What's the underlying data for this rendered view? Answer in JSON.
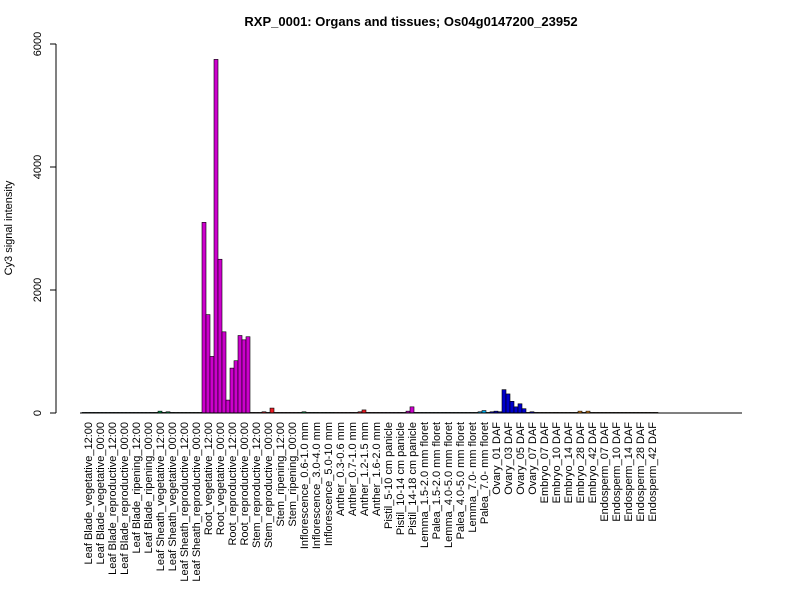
{
  "chart_data": {
    "type": "bar",
    "title": "RXP_0001: Organs and tissues; Os04g0147200_23952",
    "xlabel": "",
    "ylabel": "Cy3 signal intensity",
    "ylim": [
      0,
      6000
    ],
    "yticks": [
      0,
      2000,
      4000,
      6000
    ],
    "groups": [
      {
        "label": "Leaf Blade_vegetative_12:00",
        "color": "#00AEEF",
        "values": [
          0,
          0,
          0
        ]
      },
      {
        "label": "Leaf Blade_vegetative_00:00",
        "color": "#00AEEF",
        "values": [
          0,
          0,
          0
        ]
      },
      {
        "label": "Leaf Blade_reproductive_12:00",
        "color": "#00AEEF",
        "values": [
          0,
          0,
          0
        ]
      },
      {
        "label": "Leaf Blade_reproductive_00:00",
        "color": "#00AEEF",
        "values": [
          0,
          0,
          0
        ]
      },
      {
        "label": "Leaf Blade_ripening_12:00",
        "color": "#00AEEF",
        "values": [
          0,
          0,
          0
        ]
      },
      {
        "label": "Leaf Blade_ripening_00:00",
        "color": "#00AEEF",
        "values": [
          0,
          0,
          0
        ]
      },
      {
        "label": "Leaf Sheath_vegetative_12:00",
        "color": "#00A651",
        "values": [
          10,
          30,
          10
        ]
      },
      {
        "label": "Leaf Sheath_vegetative_00:00",
        "color": "#00A651",
        "values": [
          20,
          10,
          0
        ]
      },
      {
        "label": "Leaf Sheath_reproductive_12:00",
        "color": "#00A651",
        "values": [
          0,
          0,
          0
        ]
      },
      {
        "label": "Leaf Sheath_reproductive_00:00",
        "color": "#00A651",
        "values": [
          0,
          0,
          0
        ]
      },
      {
        "label": "Root_vegetative_12:00",
        "color": "#CC00CC",
        "values": [
          3100,
          1600,
          920
        ]
      },
      {
        "label": "Root_vegetative_00:00",
        "color": "#CC00CC",
        "values": [
          5750,
          2500,
          1320
        ]
      },
      {
        "label": "Root_reproductive_12:00",
        "color": "#CC00CC",
        "values": [
          210,
          730,
          850
        ]
      },
      {
        "label": "Root_reproductive_00:00",
        "color": "#CC00CC",
        "values": [
          1260,
          1190,
          1240
        ]
      },
      {
        "label": "Stem_reproductive_12:00",
        "color": "#ED1C24",
        "values": [
          0,
          0,
          0
        ]
      },
      {
        "label": "Stem_reproductive_00:00",
        "color": "#ED1C24",
        "values": [
          20,
          10,
          80
        ]
      },
      {
        "label": "Stem_ripening_12:00",
        "color": "#ED1C24",
        "values": [
          0,
          0,
          0
        ]
      },
      {
        "label": "Stem_ripening_00:00",
        "color": "#ED1C24",
        "values": [
          0,
          0,
          0
        ]
      },
      {
        "label": "Inflorescence_0.6-1.0 mm",
        "color": "#00A651",
        "values": [
          10,
          20,
          10
        ]
      },
      {
        "label": "Inflorescence_3.0-4.0 mm",
        "color": "#00A651",
        "values": [
          10,
          10,
          0
        ]
      },
      {
        "label": "Inflorescence_5.0-10 mm",
        "color": "#00A651",
        "values": [
          10,
          10,
          10
        ]
      },
      {
        "label": "Anther_0.3-0.6 mm",
        "color": "#ED1C24",
        "values": [
          0,
          0,
          0
        ]
      },
      {
        "label": "Anther_0.7-1.0 mm",
        "color": "#ED1C24",
        "values": [
          0,
          10,
          0
        ]
      },
      {
        "label": "Anther_1.2-1.5 mm",
        "color": "#ED1C24",
        "values": [
          20,
          50,
          10
        ]
      },
      {
        "label": "Anther_1.6-2.0 mm",
        "color": "#ED1C24",
        "values": [
          0,
          0,
          0
        ]
      },
      {
        "label": "Pistil_5-10 cm panicle",
        "color": "#CC00CC",
        "values": [
          0,
          0,
          0
        ]
      },
      {
        "label": "Pistil_10-14 cm panicle",
        "color": "#CC00CC",
        "values": [
          0,
          10,
          0
        ]
      },
      {
        "label": "Pistil_14-18 cm panicle",
        "color": "#CC00CC",
        "values": [
          30,
          100,
          10
        ]
      },
      {
        "label": "Lemma_1.5-2.0 mm floret",
        "color": "#00AEEF",
        "values": [
          0,
          0,
          0
        ]
      },
      {
        "label": "Palea_1.5-2.0 mm floret",
        "color": "#00AEEF",
        "values": [
          0,
          0,
          0
        ]
      },
      {
        "label": "Lemma_4.0-5.0 mm floret",
        "color": "#00AEEF",
        "values": [
          10,
          10,
          0
        ]
      },
      {
        "label": "Palea_4.0-5.0 mm floret",
        "color": "#00AEEF",
        "values": [
          0,
          0,
          0
        ]
      },
      {
        "label": "Lemma_7.0- mm floret",
        "color": "#00AEEF",
        "values": [
          0,
          0,
          0
        ]
      },
      {
        "label": "Palea_7.0- mm floret",
        "color": "#00AEEF",
        "values": [
          20,
          40,
          10
        ]
      },
      {
        "label": "Ovary_01 DAF",
        "color": "#0000CC",
        "values": [
          20,
          30,
          20
        ]
      },
      {
        "label": "Ovary_03 DAF",
        "color": "#0000CC",
        "values": [
          380,
          310,
          190
        ]
      },
      {
        "label": "Ovary_05 DAF",
        "color": "#0000CC",
        "values": [
          100,
          150,
          70
        ]
      },
      {
        "label": "Ovary_07 DAF",
        "color": "#0000CC",
        "values": [
          10,
          20,
          10
        ]
      },
      {
        "label": "Embryo_07 DAF",
        "color": "#F7941D",
        "values": [
          0,
          0,
          0
        ]
      },
      {
        "label": "Embryo_10 DAF",
        "color": "#F7941D",
        "values": [
          0,
          10,
          0
        ]
      },
      {
        "label": "Embryo_14 DAF",
        "color": "#F7941D",
        "values": [
          0,
          0,
          0
        ]
      },
      {
        "label": "Embryo_28 DAF",
        "color": "#F7941D",
        "values": [
          0,
          30,
          10
        ]
      },
      {
        "label": "Embryo_42 DAF",
        "color": "#F7941D",
        "values": [
          30,
          0,
          0
        ]
      },
      {
        "label": "Endosperm_07 DAF",
        "color": "#F7941D",
        "values": [
          0,
          0,
          0
        ]
      },
      {
        "label": "Endosperm_10 DAF",
        "color": "#F7941D",
        "values": [
          0,
          0,
          0
        ]
      },
      {
        "label": "Endosperm_14 DAF",
        "color": "#F7941D",
        "values": [
          0,
          0,
          0
        ]
      },
      {
        "label": "Endosperm_28 DAF",
        "color": "#F7941D",
        "values": [
          0,
          0,
          0
        ]
      },
      {
        "label": "Endosperm_42 DAF",
        "color": "#F7941D",
        "values": [
          0,
          0,
          0
        ]
      }
    ]
  }
}
